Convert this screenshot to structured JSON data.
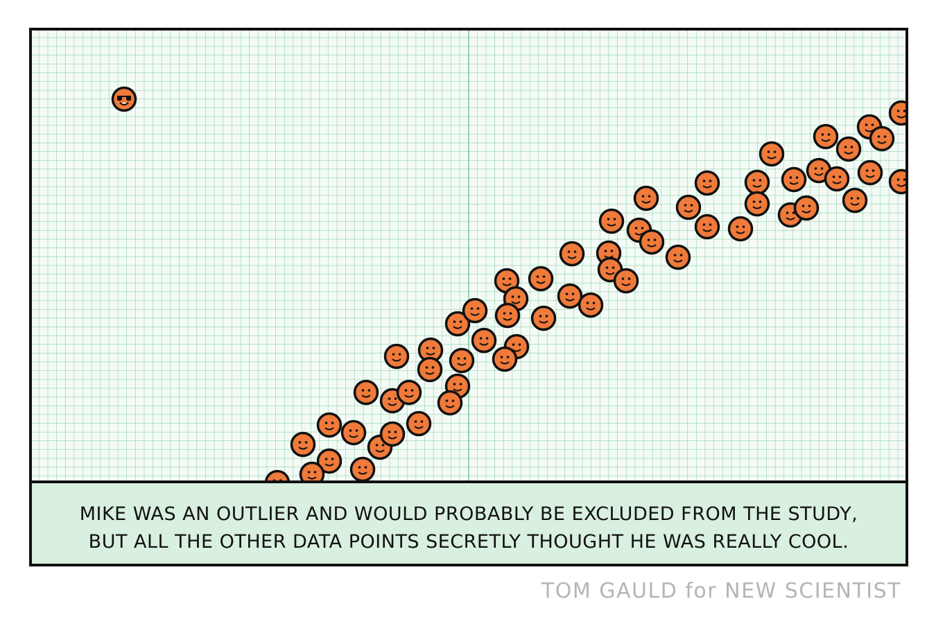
{
  "caption": {
    "lines": [
      "MIKE WAS AN OUTLIER AND WOULD PROBABLY BE EXCLUDED FROM THE STUDY,",
      "BUT ALL THE OTHER DATA POINTS SECRETLY THOUGHT HE WAS REALLY COOL."
    ]
  },
  "credit": "TOM GAULD for NEW SCIENTIST"
}
